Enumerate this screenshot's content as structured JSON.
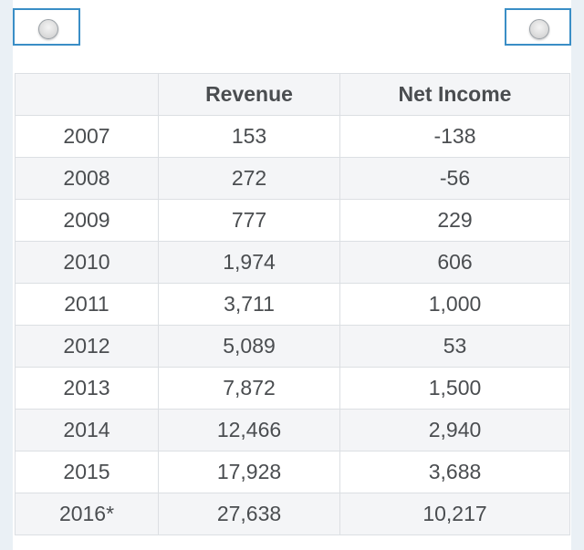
{
  "table": {
    "columns": [
      "",
      "Revenue",
      "Net Income"
    ],
    "rows": [
      [
        "2007",
        "153",
        "-138"
      ],
      [
        "2008",
        "272",
        "-56"
      ],
      [
        "2009",
        "777",
        "229"
      ],
      [
        "2010",
        "1,974",
        "606"
      ],
      [
        "2011",
        "3,711",
        "1,000"
      ],
      [
        "2012",
        "5,089",
        "53"
      ],
      [
        "2013",
        "7,872",
        "1,500"
      ],
      [
        "2014",
        "12,466",
        "2,940"
      ],
      [
        "2015",
        "17,928",
        "3,688"
      ],
      [
        "2016*",
        "27,638",
        "10,217"
      ]
    ]
  },
  "colors": {
    "page_bg": "#eaf0f5",
    "card_bg": "#ffffff",
    "toggle_border": "#3a8ec6",
    "row_alt_bg": "#f4f5f7",
    "grid_line": "#dcdfe3",
    "text": "#4a4d50"
  },
  "icons": {
    "left_toggle": "radio-button-icon",
    "right_toggle": "radio-button-icon"
  }
}
